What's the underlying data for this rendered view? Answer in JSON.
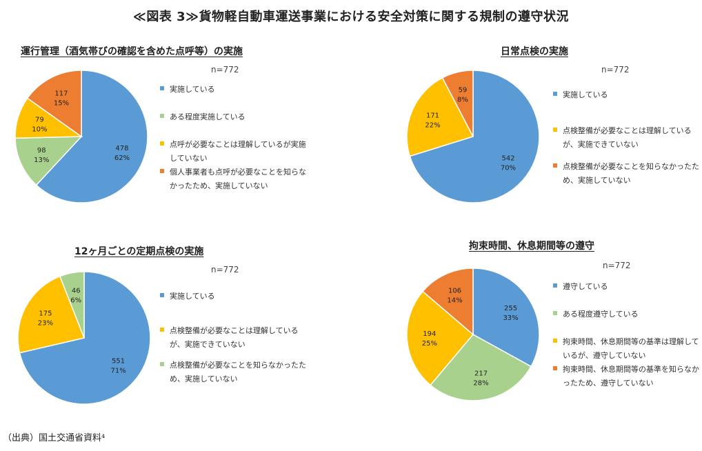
{
  "title": "≪図表 3≫貨物軽自動車運送事業における安全対策に関する規制の遵守状況",
  "source": "（出典）国土交通省資料⁴",
  "colors": {
    "blue": "#5b9bd5",
    "green": "#a9d18e",
    "yellow": "#ffc000",
    "orange": "#ed7d31"
  },
  "chart_data": [
    {
      "type": "pie",
      "title": "運行管理（酒気帯びの確認を含めた点呼等）の実施",
      "n_label": "n=772",
      "slices": [
        {
          "legend": "実施している",
          "value": 478,
          "pct": "62%",
          "color": "#5b9bd5"
        },
        {
          "legend": "ある程度実施している",
          "value": 98,
          "pct": "13%",
          "color": "#a9d18e"
        },
        {
          "legend": "点呼が必要なことは理解しているが実施していない",
          "value": 79,
          "pct": "10%",
          "color": "#ffc000"
        },
        {
          "legend": "個人事業者も点呼が必要なことを知らなかったため、実施していない",
          "value": 117,
          "pct": "15%",
          "color": "#ed7d31"
        }
      ]
    },
    {
      "type": "pie",
      "title": "日常点検の実施",
      "n_label": "n=772",
      "slices": [
        {
          "legend": "実施している",
          "value": 542,
          "pct": "70%",
          "color": "#5b9bd5"
        },
        {
          "legend": "点検整備が必要なことは理解しているが、実施できていない",
          "value": 171,
          "pct": "22%",
          "color": "#ffc000"
        },
        {
          "legend": "点検整備が必要なことを知らなかったため、実施していない",
          "value": 59,
          "pct": "8%",
          "color": "#ed7d31"
        }
      ]
    },
    {
      "type": "pie",
      "title": "12ヶ月ごとの定期点検の実施",
      "n_label": "n=772",
      "slices": [
        {
          "legend": "実施している",
          "value": 551,
          "pct": "71%",
          "color": "#5b9bd5"
        },
        {
          "legend": "点検整備が必要なことは理解しているが、実施できていない",
          "value": 175,
          "pct": "23%",
          "color": "#ffc000"
        },
        {
          "legend": "点検整備が必要なことを知らなかったため、実施していない",
          "value": 46,
          "pct": "6%",
          "color": "#a9d18e"
        }
      ]
    },
    {
      "type": "pie",
      "title": "拘束時間、休息期間等の遵守",
      "n_label": "n=772",
      "slices": [
        {
          "legend": "遵守している",
          "value": 255,
          "pct": "33%",
          "color": "#5b9bd5"
        },
        {
          "legend": "ある程度遵守している",
          "value": 217,
          "pct": "28%",
          "color": "#a9d18e"
        },
        {
          "legend": "拘束時間、休息期間等の基準は理解しているが、遵守していない",
          "value": 194,
          "pct": "25%",
          "color": "#ffc000"
        },
        {
          "legend": "拘束時間、休息期間等の基準を知らなかったため、遵守していない",
          "value": 106,
          "pct": "14%",
          "color": "#ed7d31"
        }
      ]
    }
  ]
}
